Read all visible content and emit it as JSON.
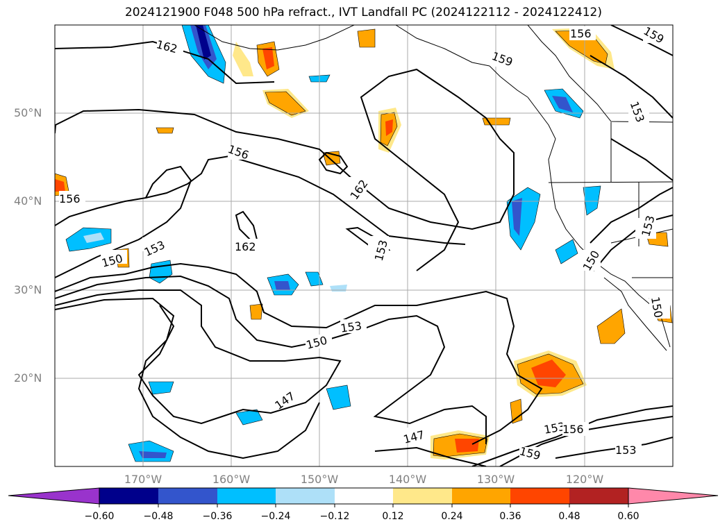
{
  "title": "2024121900 F048 500 hPa refract., IVT Landfall PC (2024122112 - 2024122412)",
  "lat_labels": [
    "50°N",
    "40°N",
    "30°N",
    "20°N"
  ],
  "lon_labels": [
    "170°W",
    "160°W",
    "150°W",
    "140°W",
    "130°W",
    "120°W"
  ],
  "contour_labels": [
    "162",
    "159",
    "156",
    "159",
    "156",
    "153",
    "156",
    "162",
    "162",
    "153",
    "153",
    "150",
    "153",
    "150",
    "150",
    "147",
    "147",
    "153",
    "156",
    "159",
    "153",
    "153",
    "150"
  ],
  "colorbar": {
    "tick_labels": [
      "−0.60",
      "−0.48",
      "−0.36",
      "−0.24",
      "−0.12",
      "0.12",
      "0.24",
      "0.36",
      "0.48",
      "0.60"
    ],
    "colors": [
      "#9933cc",
      "#00008b",
      "#3355cc",
      "#00bfff",
      "#aee0f8",
      "#ffffff",
      "#ffe88a",
      "#ffa500",
      "#ff4500",
      "#b22222",
      "#ff88aa"
    ]
  },
  "colors": {
    "frame": "#000000",
    "grid": "#aaaaaa",
    "contour": "#000000",
    "axis_label": "#808080"
  }
}
